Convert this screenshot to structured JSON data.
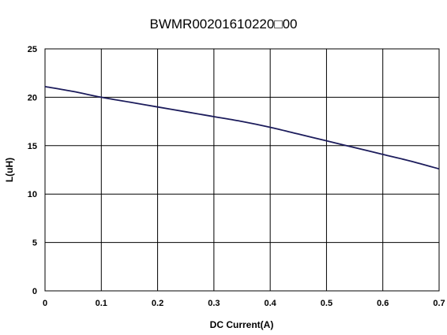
{
  "chart_data": {
    "type": "line",
    "title": "BWMR00201610220□00",
    "xlabel": "DC Current(A)",
    "ylabel": "L(uH)",
    "xlim": [
      0,
      0.7
    ],
    "ylim": [
      0,
      25
    ],
    "xticks": [
      "0",
      "0.1",
      "0.2",
      "0.3",
      "0.4",
      "0.5",
      "0.6",
      "0.7"
    ],
    "yticks": [
      "0",
      "5",
      "10",
      "15",
      "20",
      "25"
    ],
    "grid": true,
    "series": [
      {
        "color": "#1c1c5c",
        "x": [
          0,
          0.05,
          0.1,
          0.15,
          0.2,
          0.25,
          0.3,
          0.35,
          0.4,
          0.45,
          0.5,
          0.55,
          0.6,
          0.65,
          0.7
        ],
        "y": [
          21.1,
          20.6,
          20.0,
          19.5,
          19.0,
          18.5,
          18.0,
          17.5,
          16.9,
          16.2,
          15.5,
          14.8,
          14.1,
          13.4,
          12.6
        ]
      }
    ]
  }
}
